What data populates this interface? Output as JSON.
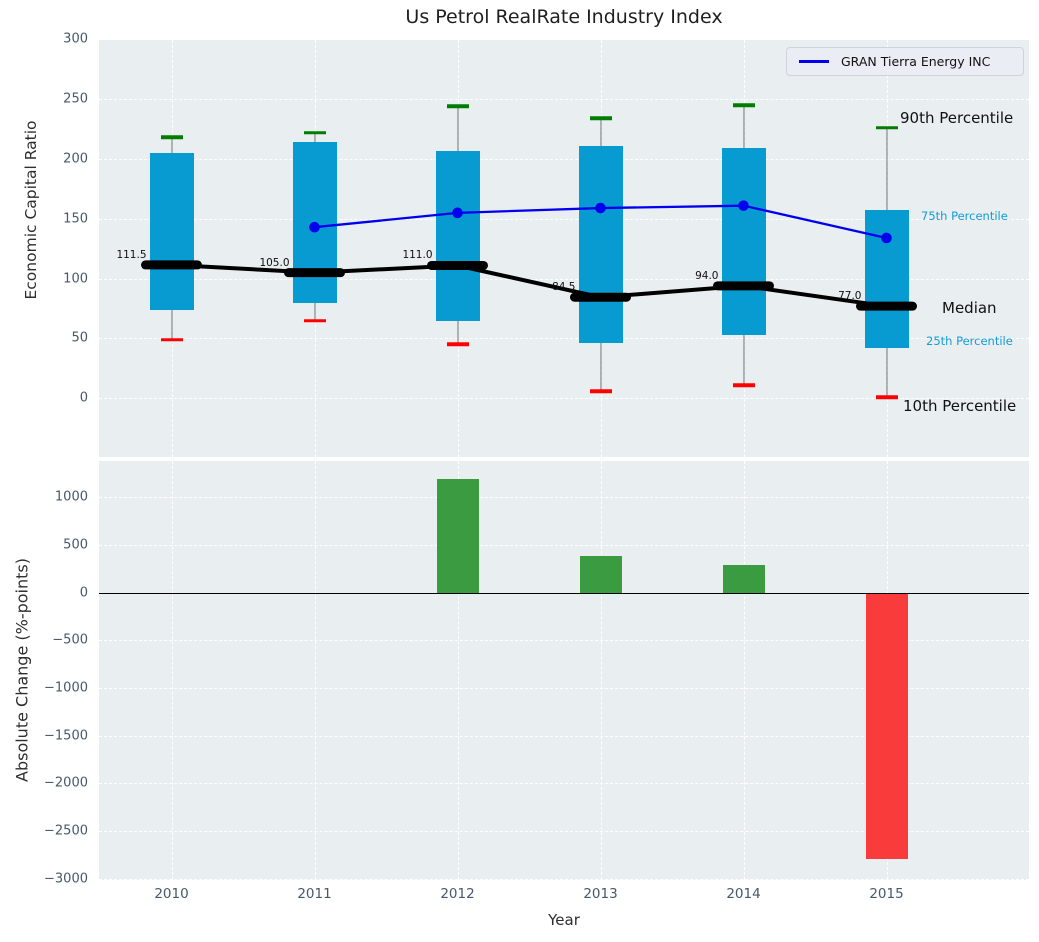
{
  "title": "Us Petrol RealRate Industry Index",
  "legend": {
    "label": "GRAN Tierra Energy INC",
    "position": "upper right"
  },
  "colors": {
    "box_fill": "#089bd2",
    "company_line": "#0000ee",
    "median_line": "#000000",
    "whisker_cap_high": "#007d00",
    "whisker_cap_low": "#ff0000",
    "bar_positive": "#3b9b40",
    "bar_negative": "#fa3b3b",
    "panel_background": "#e9eef1",
    "tick_label": "#46586b"
  },
  "chart_data": [
    {
      "type": "boxplot",
      "title": "Us Petrol RealRate Industry Index",
      "ylabel": "Economic Capital Ratio",
      "categories": [
        "2010",
        "2011",
        "2012",
        "2013",
        "2014",
        "2015"
      ],
      "yticks": [
        0,
        50,
        100,
        150,
        200,
        250,
        300
      ],
      "ylim": [
        -49,
        300
      ],
      "grid": true,
      "boxes": [
        {
          "year": "2010",
          "p10": 49,
          "p25": 74,
          "median": 111.5,
          "p75": 205,
          "p90": 218,
          "median_label": "111.5"
        },
        {
          "year": "2011",
          "p10": 65,
          "p25": 80,
          "median": 105.0,
          "p75": 214,
          "p90": 222,
          "median_label": "105.0"
        },
        {
          "year": "2012",
          "p10": 45,
          "p25": 65,
          "median": 111.0,
          "p75": 207,
          "p90": 244,
          "median_label": "111.0"
        },
        {
          "year": "2013",
          "p10": 6,
          "p25": 46,
          "median": 84.5,
          "p75": 211,
          "p90": 234,
          "median_label": "84.5"
        },
        {
          "year": "2014",
          "p10": 11,
          "p25": 53,
          "median": 94.0,
          "p75": 209,
          "p90": 245,
          "median_label": "94.0"
        },
        {
          "year": "2015",
          "p10": 1,
          "p25": 42,
          "median": 77.0,
          "p75": 157,
          "p90": 226,
          "median_label": "77.0"
        }
      ],
      "series": [
        {
          "name": "GRAN Tierra Energy INC",
          "x": [
            "2011",
            "2012",
            "2013",
            "2014",
            "2015"
          ],
          "values": [
            143,
            155,
            159,
            161,
            134
          ]
        }
      ],
      "annotations": [
        {
          "text": "90th Percentile",
          "style": "big"
        },
        {
          "text": "75th Percentile",
          "style": "small"
        },
        {
          "text": "Median",
          "style": "big"
        },
        {
          "text": "25th Percentile",
          "style": "small"
        },
        {
          "text": "10th Percentile",
          "style": "big"
        }
      ],
      "legend_entries": [
        "GRAN Tierra Energy INC"
      ]
    },
    {
      "type": "bar",
      "ylabel": "Absolute Change (%-points)",
      "xlabel": "Year",
      "categories": [
        "2010",
        "2011",
        "2012",
        "2013",
        "2014",
        "2015"
      ],
      "values": [
        null,
        null,
        1190,
        385,
        290,
        -2795
      ],
      "yticks": [
        1000,
        500,
        0,
        -500,
        -1000,
        -1500,
        -2000,
        -2500,
        -3000
      ],
      "ytick_labels": [
        "1000",
        "500",
        "0",
        "−500",
        "−1000",
        "−1500",
        "−2000",
        "−2500",
        "−3000"
      ],
      "ylim": [
        -3010,
        1380
      ],
      "grid": true
    }
  ]
}
